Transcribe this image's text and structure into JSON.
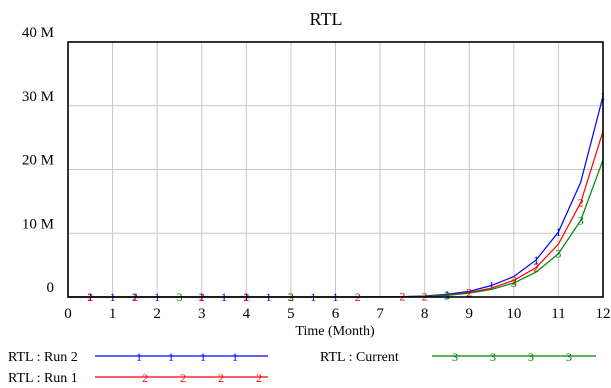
{
  "chart_data": {
    "type": "line",
    "title": "RTL",
    "xlabel": "Time (Month)",
    "ylabel": "",
    "xlim": [
      0,
      12
    ],
    "ylim": [
      0,
      40000000
    ],
    "x_ticks": [
      0,
      1,
      2,
      3,
      4,
      5,
      6,
      7,
      8,
      9,
      10,
      11,
      12
    ],
    "y_ticks": [
      {
        "value": 0,
        "label": "0"
      },
      {
        "value": 10000000,
        "label": "10 M"
      },
      {
        "value": 20000000,
        "label": "20 M"
      },
      {
        "value": 30000000,
        "label": "30 M"
      },
      {
        "value": 40000000,
        "label": "40 M"
      }
    ],
    "grid": true,
    "legend_position": "bottom",
    "series": [
      {
        "name": "RTL : Run 2",
        "marker": "1",
        "color": "#0000ff",
        "x": [
          0,
          0.5,
          1,
          1.5,
          2,
          2.5,
          3,
          3.5,
          4,
          4.5,
          5,
          5.5,
          6,
          6.5,
          7,
          7.5,
          8,
          8.5,
          9,
          9.5,
          10,
          10.5,
          11,
          11.5,
          12
        ],
        "values": [
          0,
          0,
          0,
          0,
          0,
          0,
          0,
          0,
          0,
          0,
          0,
          0,
          0,
          0,
          20000,
          60000,
          150000,
          400000,
          900000,
          1800000,
          3200000,
          5800000,
          10200000,
          18000000,
          31500000
        ],
        "marker_x": [
          0.5,
          1,
          1.5,
          2,
          3,
          3.5,
          4,
          4.5,
          5.5,
          6,
          8.5,
          9.5,
          10.5,
          11,
          12
        ]
      },
      {
        "name": "RTL : Run 1",
        "marker": "2",
        "color": "#ff0000",
        "x": [
          0,
          0.5,
          1,
          1.5,
          2,
          2.5,
          3,
          3.5,
          4,
          4.5,
          5,
          5.5,
          6,
          6.5,
          7,
          7.5,
          8,
          8.5,
          9,
          9.5,
          10,
          10.5,
          11,
          11.5,
          12
        ],
        "values": [
          0,
          0,
          0,
          0,
          0,
          0,
          0,
          0,
          0,
          0,
          0,
          0,
          0,
          0,
          15000,
          45000,
          110000,
          300000,
          700000,
          1400000,
          2600000,
          4600000,
          8300000,
          14800000,
          26000000
        ],
        "marker_x": [
          0.5,
          1.5,
          3,
          4,
          5,
          6.5,
          7.5,
          8,
          9,
          10,
          10.5,
          11.5
        ]
      },
      {
        "name": "RTL : Current",
        "marker": "3",
        "color": "#008000",
        "x": [
          0,
          0.5,
          1,
          1.5,
          2,
          2.5,
          3,
          3.5,
          4,
          4.5,
          5,
          5.5,
          6,
          6.5,
          7,
          7.5,
          8,
          8.5,
          9,
          9.5,
          10,
          10.5,
          11,
          11.5,
          12
        ],
        "values": [
          0,
          0,
          0,
          0,
          0,
          0,
          0,
          0,
          0,
          0,
          0,
          0,
          0,
          0,
          10000,
          35000,
          90000,
          250000,
          600000,
          1200000,
          2200000,
          3900000,
          6800000,
          12000000,
          21500000
        ],
        "marker_x": [
          2.5,
          5,
          8.5,
          10,
          11,
          11.5
        ]
      }
    ]
  }
}
